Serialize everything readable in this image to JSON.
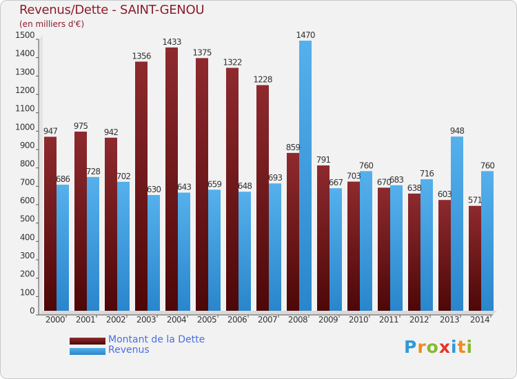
{
  "header": {
    "title": "Revenus/Dette - SAINT-GENOU",
    "subtitle": "(en milliers d'€)"
  },
  "colors": {
    "dette": "#7a1a1e",
    "revenus": "#3b9ae0",
    "background": "#f2f2f2",
    "text": "#8b1c2b",
    "legend_text": "#4a6fe0"
  },
  "chart_data": {
    "type": "bar",
    "title": "Revenus/Dette - SAINT-GENOU",
    "subtitle": "(en milliers d'€)",
    "xlabel": "",
    "ylabel": "",
    "ylim": [
      0,
      1500
    ],
    "yticks": [
      0,
      100,
      200,
      300,
      400,
      500,
      600,
      700,
      800,
      900,
      1000,
      1100,
      1200,
      1300,
      1400,
      1500
    ],
    "grid": false,
    "legend_position": "bottom-left",
    "categories": [
      "2000",
      "2001",
      "2002",
      "2003",
      "2004",
      "2005",
      "2006",
      "2007",
      "2008",
      "2009",
      "2010",
      "2011",
      "2012",
      "2013",
      "2014"
    ],
    "series": [
      {
        "name": "Montant de la Dette",
        "color": "#7a1a1e",
        "values": [
          947,
          975,
          942,
          1356,
          1433,
          1375,
          1322,
          1228,
          859,
          791,
          703,
          670,
          638,
          603,
          571
        ]
      },
      {
        "name": "Revenus",
        "color": "#3b9ae0",
        "values": [
          686,
          728,
          702,
          630,
          643,
          659,
          648,
          693,
          1470,
          667,
          760,
          683,
          716,
          948,
          760
        ]
      }
    ]
  },
  "legend": {
    "items": [
      {
        "label": "Montant de la Dette",
        "color": "#7a1a1e"
      },
      {
        "label": "Revenus",
        "color": "#3b9ae0"
      }
    ]
  },
  "logo": {
    "letters": [
      {
        "char": "P",
        "color": "#2d9ad8"
      },
      {
        "char": "r",
        "color": "#f08a1c"
      },
      {
        "char": "o",
        "color": "#86b92e"
      },
      {
        "char": "x",
        "color": "#e8332a"
      },
      {
        "char": "i",
        "color": "#2d9ad8"
      },
      {
        "char": "t",
        "color": "#f08a1c"
      },
      {
        "char": "i",
        "color": "#86b92e"
      }
    ]
  }
}
